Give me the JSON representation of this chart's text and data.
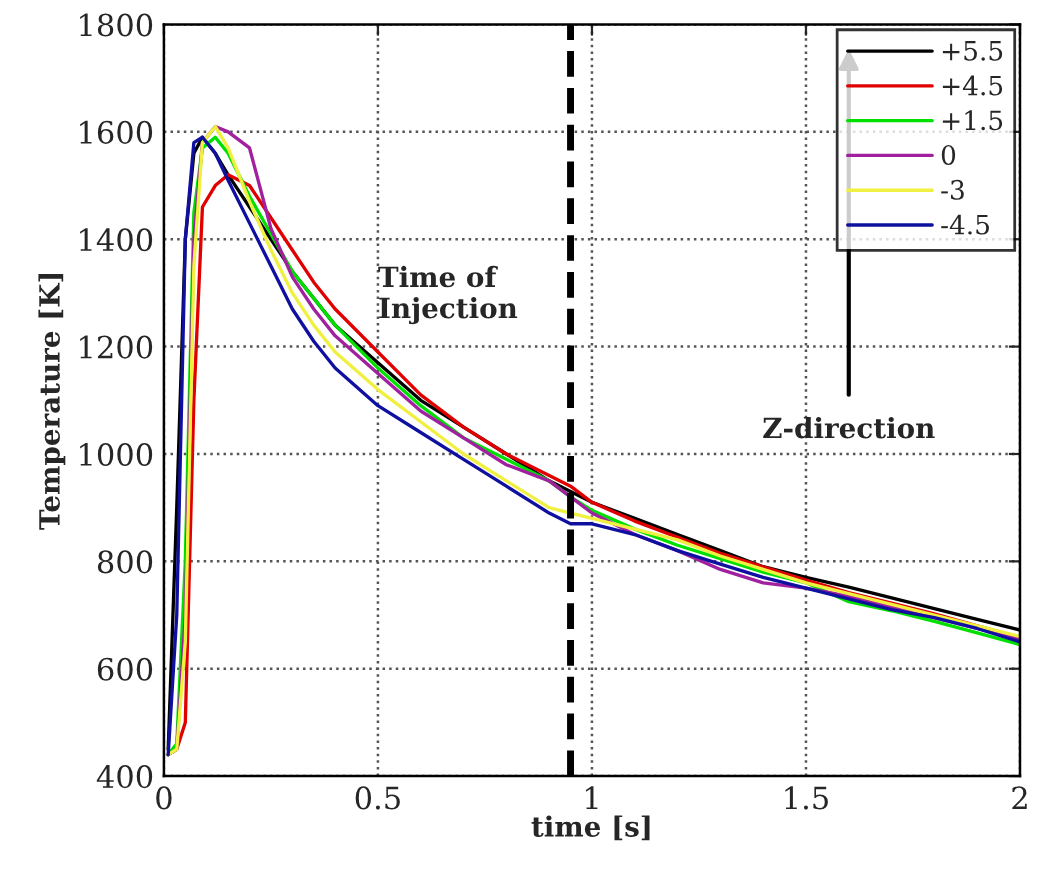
{
  "chart_data": {
    "type": "line",
    "xlabel": "time [s]",
    "ylabel": "Temperature [K]",
    "xlim": [
      0,
      2
    ],
    "ylim": [
      400,
      1800
    ],
    "xticks": [
      0,
      0.5,
      1,
      1.5,
      2
    ],
    "yticks": [
      400,
      600,
      800,
      1000,
      1200,
      1400,
      1600,
      1800
    ],
    "grid": true,
    "legend": "top right",
    "line_style": "solid",
    "x": [
      0.01,
      0.03,
      0.05,
      0.07,
      0.09,
      0.12,
      0.15,
      0.2,
      0.25,
      0.3,
      0.35,
      0.4,
      0.5,
      0.6,
      0.7,
      0.8,
      0.9,
      0.95,
      1.0,
      1.1,
      1.2,
      1.3,
      1.4,
      1.5,
      1.6,
      1.7,
      1.8,
      1.9,
      2.0
    ],
    "series": [
      {
        "name": "+5.5",
        "color": "#000000",
        "values": [
          450,
          900,
          1400,
          1560,
          1590,
          1560,
          1520,
          1460,
          1400,
          1340,
          1290,
          1240,
          1170,
          1100,
          1050,
          1000,
          950,
          930,
          910,
          880,
          850,
          820,
          790,
          770,
          752,
          732,
          712,
          692,
          672
        ]
      },
      {
        "name": "+4.5",
        "color": "#e00000",
        "values": [
          440,
          450,
          500,
          1100,
          1460,
          1500,
          1520,
          1500,
          1440,
          1380,
          1320,
          1270,
          1190,
          1110,
          1050,
          1000,
          960,
          940,
          910,
          875,
          845,
          815,
          790,
          765,
          742,
          722,
          702,
          680,
          658
        ]
      },
      {
        "name": "+1.5",
        "color": "#00e000",
        "values": [
          440,
          460,
          800,
          1450,
          1570,
          1590,
          1560,
          1480,
          1410,
          1340,
          1290,
          1240,
          1160,
          1090,
          1030,
          990,
          950,
          920,
          895,
          860,
          830,
          805,
          780,
          760,
          725,
          708,
          688,
          667,
          645
        ]
      },
      {
        "name": "0",
        "color": "#a020a0",
        "values": [
          440,
          450,
          700,
          1400,
          1580,
          1610,
          1600,
          1570,
          1420,
          1330,
          1270,
          1220,
          1150,
          1080,
          1030,
          980,
          950,
          920,
          890,
          850,
          820,
          785,
          760,
          750,
          735,
          715,
          695,
          675,
          655
        ]
      },
      {
        "name": "-3",
        "color": "#f0f040",
        "values": [
          440,
          450,
          650,
          1350,
          1580,
          1610,
          1570,
          1470,
          1380,
          1300,
          1240,
          1190,
          1120,
          1060,
          1000,
          950,
          900,
          890,
          880,
          860,
          840,
          810,
          785,
          760,
          740,
          720,
          700,
          680,
          660
        ]
      },
      {
        "name": "-4.5",
        "color": "#1010a0",
        "values": [
          440,
          700,
          1400,
          1580,
          1590,
          1560,
          1510,
          1430,
          1350,
          1270,
          1210,
          1160,
          1090,
          1040,
          990,
          940,
          890,
          870,
          870,
          850,
          820,
          795,
          770,
          750,
          730,
          710,
          695,
          675,
          650
        ]
      }
    ],
    "ref_lines": [
      {
        "axis": "x",
        "value": 0.95,
        "color": "#000000",
        "line_style": "dashed"
      }
    ],
    "annotations": [
      "Time of\nInjection",
      "Z-direction"
    ]
  }
}
